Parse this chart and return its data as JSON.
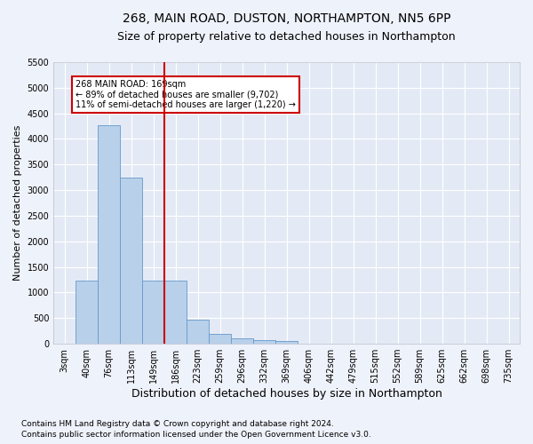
{
  "title": "268, MAIN ROAD, DUSTON, NORTHAMPTON, NN5 6PP",
  "subtitle": "Size of property relative to detached houses in Northampton",
  "xlabel": "Distribution of detached houses by size in Northampton",
  "ylabel": "Number of detached properties",
  "footnote1": "Contains HM Land Registry data © Crown copyright and database right 2024.",
  "footnote2": "Contains public sector information licensed under the Open Government Licence v3.0.",
  "annotation_line1": "268 MAIN ROAD: 169sqm",
  "annotation_line2": "← 89% of detached houses are smaller (9,702)",
  "annotation_line3": "11% of semi-detached houses are larger (1,220) →",
  "bar_color": "#b8d0ea",
  "bar_edge_color": "#6699cc",
  "vline_color": "#cc0000",
  "vline_position": 4.5,
  "categories": [
    "3sqm",
    "40sqm",
    "76sqm",
    "113sqm",
    "149sqm",
    "186sqm",
    "223sqm",
    "259sqm",
    "296sqm",
    "332sqm",
    "369sqm",
    "406sqm",
    "442sqm",
    "479sqm",
    "515sqm",
    "552sqm",
    "589sqm",
    "625sqm",
    "662sqm",
    "698sqm",
    "735sqm"
  ],
  "values": [
    0,
    1230,
    4270,
    3240,
    1230,
    1230,
    475,
    195,
    100,
    65,
    55,
    0,
    0,
    0,
    0,
    0,
    0,
    0,
    0,
    0,
    0
  ],
  "ylim": [
    0,
    5500
  ],
  "yticks": [
    0,
    500,
    1000,
    1500,
    2000,
    2500,
    3000,
    3500,
    4000,
    4500,
    5000,
    5500
  ],
  "background_color": "#eef2fa",
  "plot_bg_color": "#e4eaf5",
  "grid_color": "#ffffff",
  "title_fontsize": 10,
  "subtitle_fontsize": 9,
  "xlabel_fontsize": 9,
  "ylabel_fontsize": 8,
  "tick_fontsize": 7,
  "footnote_fontsize": 6.5
}
